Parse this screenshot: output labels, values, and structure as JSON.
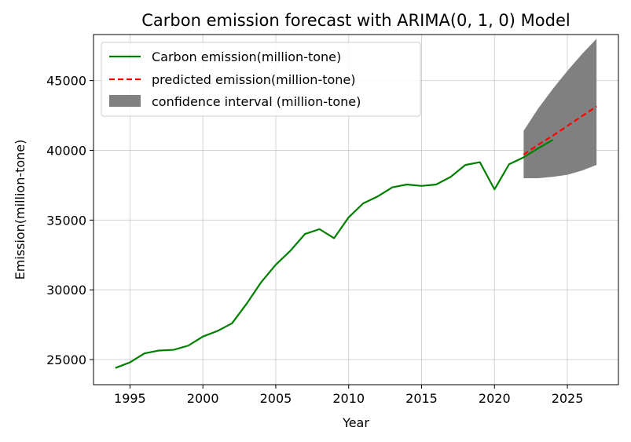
{
  "chart_data": {
    "type": "line",
    "title": "Carbon emission forecast with ARIMA(0, 1, 0) Model",
    "xlabel": "Year",
    "ylabel": "Emission(million-tone)",
    "xlim": [
      1992.5,
      2028.5
    ],
    "ylim": [
      23200,
      48300
    ],
    "xticks": [
      1995,
      2000,
      2005,
      2010,
      2015,
      2020,
      2025
    ],
    "yticks": [
      25000,
      30000,
      35000,
      40000,
      45000
    ],
    "grid": true,
    "legend_position": "top-left",
    "series": [
      {
        "name": "Carbon emission(million-tone)",
        "style": "solid",
        "color": "#008000",
        "x": [
          1994,
          1995,
          1996,
          1997,
          1998,
          1999,
          2000,
          2001,
          2002,
          2003,
          2004,
          2005,
          2006,
          2007,
          2008,
          2009,
          2010,
          2011,
          2012,
          2013,
          2014,
          2015,
          2016,
          2017,
          2018,
          2019,
          2020,
          2021,
          2022,
          2023,
          2024
        ],
        "y": [
          24400,
          24800,
          25450,
          25650,
          25700,
          26000,
          26650,
          27050,
          27600,
          29000,
          30550,
          31800,
          32800,
          34000,
          34350,
          33700,
          35200,
          36200,
          36700,
          37350,
          37550,
          37450,
          37550,
          38100,
          38950,
          39150,
          37200,
          39000,
          39500,
          40150,
          40750
        ]
      },
      {
        "name": "predicted emission(million-tone)",
        "style": "dashed",
        "color": "#ff0000",
        "x": [
          2022,
          2023,
          2024,
          2025,
          2026,
          2027
        ],
        "y": [
          39700,
          40400,
          41050,
          41750,
          42450,
          43150
        ]
      }
    ],
    "confidence_interval": {
      "name": "confidence interval (million-tone)",
      "color": "#808080",
      "x": [
        2022,
        2023,
        2024,
        2025,
        2026,
        2027
      ],
      "lower": [
        38000,
        38000,
        38100,
        38250,
        38550,
        38950
      ],
      "upper": [
        41400,
        43000,
        44400,
        45700,
        46900,
        48000
      ]
    }
  }
}
